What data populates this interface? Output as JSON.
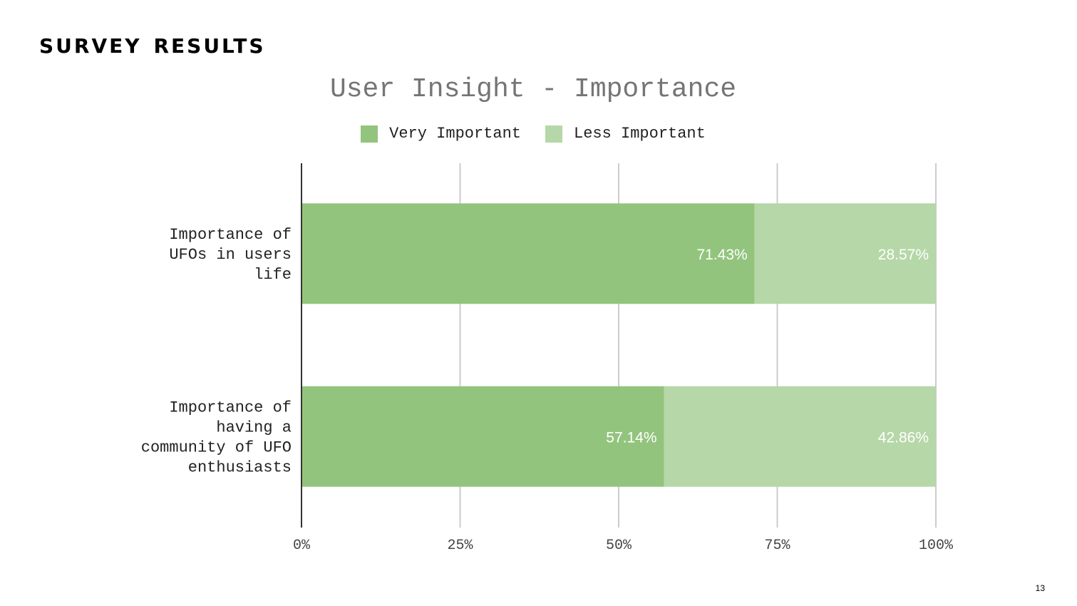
{
  "slide": {
    "heading": "survey results",
    "page_number": "13"
  },
  "chart_data": {
    "type": "bar",
    "orientation": "horizontal",
    "stacked": "percent",
    "title": "User Insight - Importance",
    "categories": [
      "Importance of UFOs in users life",
      "Importance of having a community of UFO enthusiasts"
    ],
    "series": [
      {
        "name": "Very Important",
        "values": [
          71.43,
          57.14
        ],
        "labels": [
          "71.43%",
          "57.14%"
        ],
        "color": "#93c47d"
      },
      {
        "name": "Less Important",
        "values": [
          28.57,
          42.86
        ],
        "labels": [
          "28.57%",
          "42.86%"
        ],
        "color": "#b6d7a8"
      }
    ],
    "xlim": [
      0,
      100
    ],
    "x_ticks": [
      "0%",
      "25%",
      "50%",
      "75%",
      "100%"
    ],
    "grid": true,
    "legend_position": "top"
  }
}
